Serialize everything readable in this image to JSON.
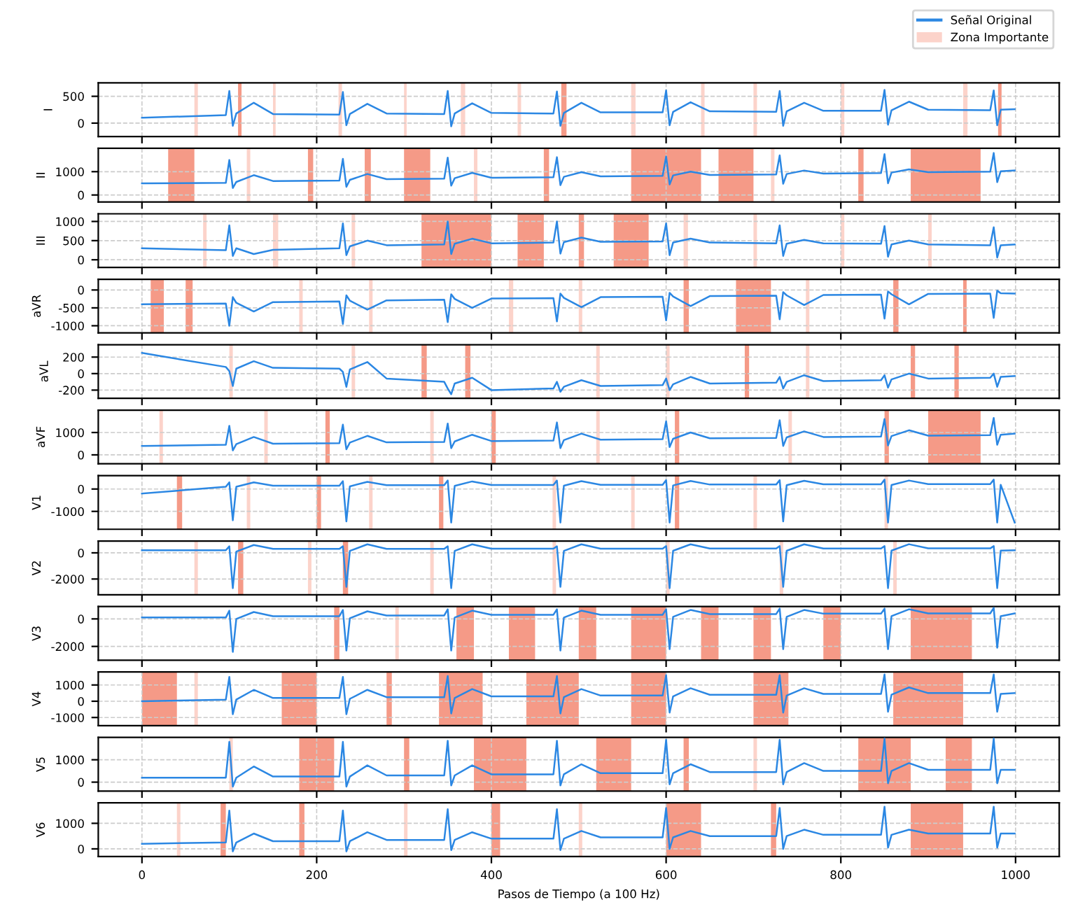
{
  "chart_data": [
    {
      "type": "line",
      "ylabel": "I",
      "legend": "top right",
      "grid": true,
      "tick_labels": "y",
      "xlim": [
        -50,
        1050
      ],
      "xticks": [
        0,
        200,
        400,
        600,
        800,
        1000
      ],
      "ylim": [
        -250,
        750
      ],
      "yticks": [
        0,
        500
      ],
      "x": [
        0,
        96,
        100,
        104,
        108,
        128,
        150,
        226,
        230,
        234,
        238,
        258,
        280,
        346,
        350,
        354,
        358,
        378,
        400,
        471,
        475,
        479,
        483,
        503,
        525,
        596,
        600,
        604,
        608,
        628,
        650,
        726,
        730,
        734,
        738,
        758,
        780,
        846,
        850,
        854,
        858,
        878,
        900,
        971,
        975,
        979,
        983,
        999
      ],
      "series": [
        {
          "name": "Señal Original",
          "color": "#2b87e3",
          "values": [
            100,
            150,
            600,
            -50,
            180,
            380,
            170,
            160,
            580,
            -40,
            170,
            360,
            180,
            170,
            600,
            -60,
            180,
            370,
            190,
            180,
            590,
            -50,
            190,
            380,
            200,
            200,
            610,
            -40,
            210,
            390,
            220,
            210,
            600,
            -50,
            220,
            380,
            230,
            230,
            620,
            -30,
            240,
            400,
            250,
            240,
            610,
            -40,
            250,
            260
          ]
        }
      ],
      "bands": [
        {
          "axis": "x",
          "from": 60,
          "to": 64,
          "color": "#fcd3ca",
          "label": "Zona Importante"
        },
        {
          "axis": "x",
          "from": 110,
          "to": 114,
          "color": "#f59a87"
        },
        {
          "axis": "x",
          "from": 150,
          "to": 153,
          "color": "#fcd3ca"
        },
        {
          "axis": "x",
          "from": 225,
          "to": 229,
          "color": "#fcd3ca"
        },
        {
          "axis": "x",
          "from": 300,
          "to": 303,
          "color": "#fcd3ca"
        },
        {
          "axis": "x",
          "from": 365,
          "to": 370,
          "color": "#fcd3ca"
        },
        {
          "axis": "x",
          "from": 430,
          "to": 434,
          "color": "#fcd3ca"
        },
        {
          "axis": "x",
          "from": 480,
          "to": 486,
          "color": "#f59a87"
        },
        {
          "axis": "x",
          "from": 560,
          "to": 565,
          "color": "#fcd3ca"
        },
        {
          "axis": "x",
          "from": 640,
          "to": 644,
          "color": "#fcd3ca"
        },
        {
          "axis": "x",
          "from": 700,
          "to": 704,
          "color": "#fcd3ca"
        },
        {
          "axis": "x",
          "from": 800,
          "to": 804,
          "color": "#fcd3ca"
        },
        {
          "axis": "x",
          "from": 940,
          "to": 945,
          "color": "#fcd3ca"
        },
        {
          "axis": "x",
          "from": 980,
          "to": 984,
          "color": "#f59a87"
        }
      ]
    },
    {
      "type": "line",
      "ylabel": "II",
      "grid": true,
      "tick_labels": "y",
      "xlim": [
        -50,
        1050
      ],
      "xticks": [
        0,
        200,
        400,
        600,
        800,
        1000
      ],
      "ylim": [
        -300,
        2000
      ],
      "yticks": [
        0,
        1000
      ],
      "x": [
        0,
        96,
        100,
        104,
        108,
        128,
        150,
        226,
        230,
        234,
        238,
        258,
        280,
        346,
        350,
        354,
        358,
        378,
        400,
        471,
        475,
        479,
        483,
        503,
        525,
        596,
        600,
        604,
        608,
        628,
        650,
        726,
        730,
        734,
        738,
        758,
        780,
        846,
        850,
        854,
        858,
        878,
        900,
        971,
        975,
        979,
        983,
        999
      ],
      "series": [
        {
          "color": "#2b87e3",
          "values": [
            500,
            520,
            1500,
            300,
            560,
            850,
            600,
            620,
            1550,
            350,
            650,
            900,
            680,
            700,
            1600,
            400,
            720,
            950,
            740,
            760,
            1620,
            420,
            780,
            980,
            800,
            820,
            1650,
            450,
            840,
            1000,
            860,
            880,
            1700,
            480,
            900,
            1050,
            920,
            940,
            1750,
            500,
            960,
            1100,
            980,
            1000,
            1800,
            550,
            1020,
            1050
          ]
        }
      ],
      "bands": [
        {
          "axis": "x",
          "from": 30,
          "to": 60,
          "color": "#f59a87"
        },
        {
          "axis": "x",
          "from": 120,
          "to": 124,
          "color": "#fcd3ca"
        },
        {
          "axis": "x",
          "from": 190,
          "to": 196,
          "color": "#f59a87"
        },
        {
          "axis": "x",
          "from": 255,
          "to": 262,
          "color": "#f59a87"
        },
        {
          "axis": "x",
          "from": 300,
          "to": 330,
          "color": "#f59a87"
        },
        {
          "axis": "x",
          "from": 380,
          "to": 384,
          "color": "#fcd3ca"
        },
        {
          "axis": "x",
          "from": 460,
          "to": 466,
          "color": "#f59a87"
        },
        {
          "axis": "x",
          "from": 560,
          "to": 640,
          "color": "#f59a87"
        },
        {
          "axis": "x",
          "from": 660,
          "to": 700,
          "color": "#f59a87"
        },
        {
          "axis": "x",
          "from": 720,
          "to": 724,
          "color": "#fcd3ca"
        },
        {
          "axis": "x",
          "from": 820,
          "to": 826,
          "color": "#f59a87"
        },
        {
          "axis": "x",
          "from": 880,
          "to": 960,
          "color": "#f59a87"
        }
      ]
    },
    {
      "type": "line",
      "ylabel": "III",
      "grid": true,
      "tick_labels": "y",
      "xlim": [
        -50,
        1050
      ],
      "xticks": [
        0,
        200,
        400,
        600,
        800,
        1000
      ],
      "ylim": [
        -200,
        1200
      ],
      "yticks": [
        0,
        500,
        1000
      ],
      "x": [
        0,
        96,
        100,
        104,
        108,
        128,
        150,
        226,
        230,
        234,
        238,
        258,
        280,
        346,
        350,
        354,
        358,
        378,
        400,
        471,
        475,
        479,
        483,
        503,
        525,
        596,
        600,
        604,
        608,
        628,
        650,
        726,
        730,
        734,
        738,
        758,
        780,
        846,
        850,
        854,
        858,
        878,
        900,
        971,
        975,
        979,
        983,
        999
      ],
      "series": [
        {
          "color": "#2b87e3",
          "values": [
            300,
            250,
            900,
            100,
            300,
            150,
            260,
            300,
            950,
            120,
            350,
            500,
            380,
            400,
            1000,
            150,
            420,
            550,
            430,
            450,
            1000,
            160,
            460,
            580,
            470,
            480,
            950,
            120,
            450,
            550,
            450,
            430,
            900,
            100,
            420,
            520,
            430,
            420,
            880,
            80,
            400,
            500,
            400,
            380,
            850,
            60,
            380,
            400
          ]
        }
      ],
      "bands": [
        {
          "axis": "x",
          "from": 70,
          "to": 74,
          "color": "#fcd3ca"
        },
        {
          "axis": "x",
          "from": 150,
          "to": 156,
          "color": "#fcd3ca"
        },
        {
          "axis": "x",
          "from": 240,
          "to": 244,
          "color": "#fcd3ca"
        },
        {
          "axis": "x",
          "from": 320,
          "to": 400,
          "color": "#f59a87"
        },
        {
          "axis": "x",
          "from": 430,
          "to": 460,
          "color": "#f59a87"
        },
        {
          "axis": "x",
          "from": 500,
          "to": 506,
          "color": "#f59a87"
        },
        {
          "axis": "x",
          "from": 540,
          "to": 580,
          "color": "#f59a87"
        },
        {
          "axis": "x",
          "from": 620,
          "to": 625,
          "color": "#fcd3ca"
        },
        {
          "axis": "x",
          "from": 700,
          "to": 704,
          "color": "#fcd3ca"
        },
        {
          "axis": "x",
          "from": 800,
          "to": 804,
          "color": "#fcd3ca"
        },
        {
          "axis": "x",
          "from": 900,
          "to": 904,
          "color": "#fcd3ca"
        }
      ]
    },
    {
      "type": "line",
      "ylabel": "aVR",
      "grid": true,
      "tick_labels": "y",
      "xlim": [
        -50,
        1050
      ],
      "xticks": [
        0,
        200,
        400,
        600,
        800,
        1000
      ],
      "ylim": [
        -1200,
        300
      ],
      "yticks": [
        -1000,
        -500,
        0
      ],
      "x": [
        0,
        96,
        100,
        104,
        108,
        128,
        150,
        226,
        230,
        234,
        238,
        258,
        280,
        346,
        350,
        354,
        358,
        378,
        400,
        471,
        475,
        479,
        483,
        503,
        525,
        596,
        600,
        604,
        608,
        628,
        650,
        726,
        730,
        734,
        738,
        758,
        780,
        846,
        850,
        854,
        858,
        878,
        900,
        971,
        975,
        979,
        983,
        999
      ],
      "series": [
        {
          "color": "#2b87e3",
          "values": [
            -400,
            -380,
            -1000,
            -200,
            -360,
            -600,
            -340,
            -320,
            -950,
            -150,
            -300,
            -550,
            -290,
            -270,
            -900,
            -120,
            -250,
            -500,
            -240,
            -230,
            -880,
            -100,
            -220,
            -480,
            -200,
            -190,
            -850,
            -80,
            -180,
            -450,
            -170,
            -160,
            -820,
            -60,
            -150,
            -420,
            -140,
            -130,
            -800,
            -40,
            -120,
            -400,
            -110,
            -100,
            -780,
            -20,
            -90,
            -100
          ]
        }
      ],
      "bands": [
        {
          "axis": "x",
          "from": 10,
          "to": 25,
          "color": "#f59a87"
        },
        {
          "axis": "x",
          "from": 50,
          "to": 58,
          "color": "#f59a87"
        },
        {
          "axis": "x",
          "from": 180,
          "to": 184,
          "color": "#fcd3ca"
        },
        {
          "axis": "x",
          "from": 260,
          "to": 264,
          "color": "#fcd3ca"
        },
        {
          "axis": "x",
          "from": 420,
          "to": 425,
          "color": "#fcd3ca"
        },
        {
          "axis": "x",
          "from": 500,
          "to": 504,
          "color": "#fcd3ca"
        },
        {
          "axis": "x",
          "from": 620,
          "to": 626,
          "color": "#f59a87"
        },
        {
          "axis": "x",
          "from": 680,
          "to": 720,
          "color": "#f59a87"
        },
        {
          "axis": "x",
          "from": 760,
          "to": 764,
          "color": "#fcd3ca"
        },
        {
          "axis": "x",
          "from": 860,
          "to": 866,
          "color": "#f59a87"
        },
        {
          "axis": "x",
          "from": 940,
          "to": 944,
          "color": "#f59a87"
        }
      ]
    },
    {
      "type": "line",
      "ylabel": "aVL",
      "grid": true,
      "tick_labels": "y",
      "xlim": [
        -50,
        1050
      ],
      "xticks": [
        0,
        200,
        400,
        600,
        800,
        1000
      ],
      "ylim": [
        -300,
        350
      ],
      "yticks": [
        -200,
        0,
        200
      ],
      "x": [
        0,
        96,
        100,
        104,
        108,
        128,
        150,
        226,
        230,
        234,
        238,
        258,
        280,
        346,
        350,
        354,
        358,
        378,
        400,
        471,
        475,
        479,
        483,
        503,
        525,
        596,
        600,
        604,
        608,
        628,
        650,
        726,
        730,
        734,
        738,
        758,
        780,
        846,
        850,
        854,
        858,
        878,
        900,
        971,
        975,
        979,
        983,
        999
      ],
      "series": [
        {
          "color": "#2b87e3",
          "values": [
            250,
            80,
            30,
            -150,
            60,
            150,
            70,
            60,
            20,
            -160,
            50,
            140,
            -60,
            -100,
            -180,
            -250,
            -120,
            -50,
            -200,
            -180,
            -100,
            -220,
            -160,
            -80,
            -150,
            -140,
            -60,
            -200,
            -130,
            -40,
            -120,
            -110,
            -40,
            -180,
            -100,
            -20,
            -90,
            -80,
            -20,
            -170,
            -70,
            0,
            -60,
            -50,
            0,
            -160,
            -40,
            -30
          ]
        }
      ],
      "bands": [
        {
          "axis": "x",
          "from": 100,
          "to": 104,
          "color": "#fcd3ca"
        },
        {
          "axis": "x",
          "from": 240,
          "to": 244,
          "color": "#fcd3ca"
        },
        {
          "axis": "x",
          "from": 320,
          "to": 326,
          "color": "#f59a87"
        },
        {
          "axis": "x",
          "from": 370,
          "to": 376,
          "color": "#f59a87"
        },
        {
          "axis": "x",
          "from": 520,
          "to": 524,
          "color": "#fcd3ca"
        },
        {
          "axis": "x",
          "from": 600,
          "to": 604,
          "color": "#fcd3ca"
        },
        {
          "axis": "x",
          "from": 690,
          "to": 695,
          "color": "#f59a87"
        },
        {
          "axis": "x",
          "from": 760,
          "to": 764,
          "color": "#fcd3ca"
        },
        {
          "axis": "x",
          "from": 880,
          "to": 885,
          "color": "#f59a87"
        },
        {
          "axis": "x",
          "from": 930,
          "to": 935,
          "color": "#f59a87"
        }
      ]
    },
    {
      "type": "line",
      "ylabel": "aVF",
      "grid": true,
      "tick_labels": "y",
      "xlim": [
        -50,
        1050
      ],
      "xticks": [
        0,
        200,
        400,
        600,
        800,
        1000
      ],
      "ylim": [
        -400,
        2000
      ],
      "yticks": [
        0,
        1000
      ],
      "x": [
        0,
        96,
        100,
        104,
        108,
        128,
        150,
        226,
        230,
        234,
        238,
        258,
        280,
        346,
        350,
        354,
        358,
        378,
        400,
        471,
        475,
        479,
        483,
        503,
        525,
        596,
        600,
        604,
        608,
        628,
        650,
        726,
        730,
        734,
        738,
        758,
        780,
        846,
        850,
        854,
        858,
        878,
        900,
        971,
        975,
        979,
        983,
        999
      ],
      "series": [
        {
          "color": "#2b87e3",
          "values": [
            400,
            450,
            1300,
            200,
            480,
            800,
            500,
            520,
            1350,
            250,
            550,
            850,
            560,
            580,
            1400,
            300,
            600,
            900,
            620,
            640,
            1450,
            300,
            660,
            950,
            680,
            700,
            1500,
            350,
            720,
            1000,
            740,
            760,
            1550,
            400,
            780,
            1050,
            800,
            820,
            1600,
            420,
            840,
            1100,
            860,
            880,
            1650,
            450,
            900,
            950
          ]
        }
      ],
      "bands": [
        {
          "axis": "x",
          "from": 20,
          "to": 24,
          "color": "#fcd3ca"
        },
        {
          "axis": "x",
          "from": 140,
          "to": 144,
          "color": "#fcd3ca"
        },
        {
          "axis": "x",
          "from": 210,
          "to": 215,
          "color": "#f59a87"
        },
        {
          "axis": "x",
          "from": 330,
          "to": 334,
          "color": "#fcd3ca"
        },
        {
          "axis": "x",
          "from": 400,
          "to": 405,
          "color": "#f59a87"
        },
        {
          "axis": "x",
          "from": 520,
          "to": 524,
          "color": "#fcd3ca"
        },
        {
          "axis": "x",
          "from": 610,
          "to": 615,
          "color": "#f59a87"
        },
        {
          "axis": "x",
          "from": 740,
          "to": 744,
          "color": "#fcd3ca"
        },
        {
          "axis": "x",
          "from": 850,
          "to": 855,
          "color": "#f59a87"
        },
        {
          "axis": "x",
          "from": 900,
          "to": 960,
          "color": "#f59a87"
        }
      ]
    },
    {
      "type": "line",
      "ylabel": "V1",
      "grid": true,
      "tick_labels": "y",
      "xlim": [
        -50,
        1050
      ],
      "xticks": [
        0,
        200,
        400,
        600,
        800,
        1000
      ],
      "ylim": [
        -1800,
        600
      ],
      "yticks": [
        -1000,
        0
      ],
      "x": [
        0,
        96,
        100,
        104,
        108,
        128,
        150,
        226,
        230,
        234,
        238,
        258,
        280,
        346,
        350,
        354,
        358,
        378,
        400,
        471,
        475,
        479,
        483,
        503,
        525,
        596,
        600,
        604,
        608,
        628,
        650,
        726,
        730,
        734,
        738,
        758,
        780,
        846,
        850,
        854,
        858,
        878,
        900,
        971,
        975,
        979,
        983,
        999
      ],
      "series": [
        {
          "color": "#2b87e3",
          "values": [
            -200,
            100,
            300,
            -1400,
            100,
            300,
            150,
            150,
            350,
            -1450,
            120,
            320,
            170,
            170,
            380,
            -1500,
            140,
            340,
            180,
            180,
            380,
            -1500,
            150,
            350,
            190,
            190,
            400,
            -1500,
            160,
            360,
            200,
            200,
            400,
            -1450,
            170,
            370,
            210,
            210,
            420,
            -1500,
            180,
            380,
            220,
            220,
            420,
            -1500,
            190,
            -1500
          ]
        }
      ],
      "bands": [
        {
          "axis": "x",
          "from": 40,
          "to": 46,
          "color": "#f59a87"
        },
        {
          "axis": "x",
          "from": 120,
          "to": 124,
          "color": "#fcd3ca"
        },
        {
          "axis": "x",
          "from": 200,
          "to": 205,
          "color": "#f59a87"
        },
        {
          "axis": "x",
          "from": 260,
          "to": 264,
          "color": "#fcd3ca"
        },
        {
          "axis": "x",
          "from": 340,
          "to": 345,
          "color": "#f59a87"
        },
        {
          "axis": "x",
          "from": 470,
          "to": 474,
          "color": "#fcd3ca"
        },
        {
          "axis": "x",
          "from": 560,
          "to": 564,
          "color": "#fcd3ca"
        },
        {
          "axis": "x",
          "from": 610,
          "to": 615,
          "color": "#f59a87"
        },
        {
          "axis": "x",
          "from": 700,
          "to": 704,
          "color": "#fcd3ca"
        },
        {
          "axis": "x",
          "from": 850,
          "to": 854,
          "color": "#fcd3ca"
        }
      ]
    },
    {
      "type": "line",
      "ylabel": "V2",
      "grid": true,
      "tick_labels": "y",
      "xlim": [
        -50,
        1050
      ],
      "xticks": [
        0,
        200,
        400,
        600,
        800,
        1000
      ],
      "ylim": [
        -3200,
        900
      ],
      "yticks": [
        -2000,
        0
      ],
      "x": [
        0,
        96,
        100,
        104,
        108,
        128,
        150,
        226,
        230,
        234,
        238,
        258,
        280,
        346,
        350,
        354,
        358,
        378,
        400,
        471,
        475,
        479,
        483,
        503,
        525,
        596,
        600,
        604,
        608,
        628,
        650,
        726,
        730,
        734,
        738,
        758,
        780,
        846,
        850,
        854,
        858,
        878,
        900,
        971,
        975,
        979,
        983,
        999
      ],
      "series": [
        {
          "color": "#2b87e3",
          "values": [
            200,
            200,
            500,
            -2700,
            100,
            600,
            300,
            300,
            500,
            -2600,
            150,
            650,
            300,
            300,
            500,
            -2700,
            150,
            650,
            320,
            320,
            500,
            -2600,
            150,
            650,
            320,
            320,
            520,
            -2700,
            160,
            650,
            330,
            330,
            520,
            -2600,
            160,
            650,
            330,
            330,
            520,
            -2700,
            170,
            660,
            340,
            340,
            520,
            -2700,
            170,
            200
          ]
        }
      ],
      "bands": [
        {
          "axis": "x",
          "from": 60,
          "to": 64,
          "color": "#fcd3ca"
        },
        {
          "axis": "x",
          "from": 110,
          "to": 116,
          "color": "#f59a87"
        },
        {
          "axis": "x",
          "from": 190,
          "to": 194,
          "color": "#fcd3ca"
        },
        {
          "axis": "x",
          "from": 230,
          "to": 236,
          "color": "#f59a87"
        },
        {
          "axis": "x",
          "from": 330,
          "to": 334,
          "color": "#fcd3ca"
        },
        {
          "axis": "x",
          "from": 470,
          "to": 474,
          "color": "#fcd3ca"
        },
        {
          "axis": "x",
          "from": 600,
          "to": 604,
          "color": "#fcd3ca"
        },
        {
          "axis": "x",
          "from": 730,
          "to": 734,
          "color": "#fcd3ca"
        },
        {
          "axis": "x",
          "from": 860,
          "to": 864,
          "color": "#fcd3ca"
        }
      ]
    },
    {
      "type": "line",
      "ylabel": "V3",
      "grid": true,
      "tick_labels": "y",
      "xlim": [
        -50,
        1050
      ],
      "xticks": [
        0,
        200,
        400,
        600,
        800,
        1000
      ],
      "ylim": [
        -3000,
        900
      ],
      "yticks": [
        -2000,
        0
      ],
      "x": [
        0,
        96,
        100,
        104,
        108,
        128,
        150,
        226,
        230,
        234,
        238,
        258,
        280,
        346,
        350,
        354,
        358,
        378,
        400,
        471,
        475,
        479,
        483,
        503,
        525,
        596,
        600,
        604,
        608,
        628,
        650,
        726,
        730,
        734,
        738,
        758,
        780,
        846,
        850,
        854,
        858,
        878,
        900,
        971,
        975,
        979,
        983,
        999
      ],
      "series": [
        {
          "color": "#2b87e3",
          "values": [
            100,
            100,
            600,
            -2400,
            0,
            500,
            200,
            200,
            650,
            -2300,
            50,
            550,
            250,
            250,
            700,
            -2300,
            100,
            600,
            300,
            300,
            700,
            -2300,
            100,
            600,
            300,
            300,
            700,
            -2200,
            150,
            650,
            350,
            350,
            750,
            -2200,
            150,
            650,
            380,
            380,
            750,
            -2200,
            200,
            700,
            400,
            400,
            800,
            -2100,
            200,
            400
          ]
        }
      ],
      "bands": [
        {
          "axis": "x",
          "from": 220,
          "to": 226,
          "color": "#f59a87"
        },
        {
          "axis": "x",
          "from": 290,
          "to": 294,
          "color": "#fcd3ca"
        },
        {
          "axis": "x",
          "from": 360,
          "to": 380,
          "color": "#f59a87"
        },
        {
          "axis": "x",
          "from": 420,
          "to": 450,
          "color": "#f59a87"
        },
        {
          "axis": "x",
          "from": 500,
          "to": 520,
          "color": "#f59a87"
        },
        {
          "axis": "x",
          "from": 560,
          "to": 600,
          "color": "#f59a87"
        },
        {
          "axis": "x",
          "from": 640,
          "to": 660,
          "color": "#f59a87"
        },
        {
          "axis": "x",
          "from": 700,
          "to": 720,
          "color": "#f59a87"
        },
        {
          "axis": "x",
          "from": 780,
          "to": 800,
          "color": "#f59a87"
        },
        {
          "axis": "x",
          "from": 880,
          "to": 950,
          "color": "#f59a87"
        }
      ]
    },
    {
      "type": "line",
      "ylabel": "V4",
      "grid": true,
      "tick_labels": "y",
      "xlim": [
        -50,
        1050
      ],
      "xticks": [
        0,
        200,
        400,
        600,
        800,
        1000
      ],
      "ylim": [
        -1500,
        1800
      ],
      "yticks": [
        -1000,
        0,
        1000
      ],
      "x": [
        0,
        96,
        100,
        104,
        108,
        128,
        150,
        226,
        230,
        234,
        238,
        258,
        280,
        346,
        350,
        354,
        358,
        378,
        400,
        471,
        475,
        479,
        483,
        503,
        525,
        596,
        600,
        604,
        608,
        628,
        650,
        726,
        730,
        734,
        738,
        758,
        780,
        846,
        850,
        854,
        858,
        878,
        900,
        971,
        975,
        979,
        983,
        999
      ],
      "series": [
        {
          "color": "#2b87e3",
          "values": [
            0,
            100,
            1500,
            -800,
            100,
            700,
            200,
            200,
            1500,
            -800,
            150,
            700,
            250,
            250,
            1550,
            -750,
            200,
            750,
            300,
            300,
            1550,
            -750,
            250,
            750,
            350,
            350,
            1600,
            -700,
            300,
            800,
            400,
            400,
            1600,
            -700,
            350,
            800,
            450,
            450,
            1650,
            -650,
            400,
            850,
            500,
            500,
            1650,
            -650,
            450,
            500
          ]
        }
      ],
      "bands": [
        {
          "axis": "x",
          "from": 0,
          "to": 40,
          "color": "#f59a87"
        },
        {
          "axis": "x",
          "from": 60,
          "to": 64,
          "color": "#fcd3ca"
        },
        {
          "axis": "x",
          "from": 160,
          "to": 200,
          "color": "#f59a87"
        },
        {
          "axis": "x",
          "from": 280,
          "to": 286,
          "color": "#f59a87"
        },
        {
          "axis": "x",
          "from": 340,
          "to": 390,
          "color": "#f59a87"
        },
        {
          "axis": "x",
          "from": 440,
          "to": 500,
          "color": "#f59a87"
        },
        {
          "axis": "x",
          "from": 560,
          "to": 600,
          "color": "#f59a87"
        },
        {
          "axis": "x",
          "from": 700,
          "to": 740,
          "color": "#f59a87"
        },
        {
          "axis": "x",
          "from": 860,
          "to": 940,
          "color": "#f59a87"
        }
      ]
    },
    {
      "type": "line",
      "ylabel": "V5",
      "grid": true,
      "tick_labels": "y",
      "xlim": [
        -50,
        1050
      ],
      "xticks": [
        0,
        200,
        400,
        600,
        800,
        1000
      ],
      "ylim": [
        -400,
        2000
      ],
      "yticks": [
        0,
        1000
      ],
      "x": [
        0,
        96,
        100,
        104,
        108,
        128,
        150,
        226,
        230,
        234,
        238,
        258,
        280,
        346,
        350,
        354,
        358,
        378,
        400,
        471,
        475,
        479,
        483,
        503,
        525,
        596,
        600,
        604,
        608,
        628,
        650,
        726,
        730,
        734,
        738,
        758,
        780,
        846,
        850,
        854,
        858,
        878,
        900,
        971,
        975,
        979,
        983,
        999
      ],
      "series": [
        {
          "color": "#2b87e3",
          "values": [
            200,
            200,
            1800,
            -200,
            200,
            700,
            250,
            250,
            1800,
            -200,
            250,
            750,
            300,
            300,
            1850,
            -150,
            300,
            750,
            350,
            350,
            1850,
            -150,
            350,
            800,
            400,
            400,
            1900,
            -100,
            400,
            800,
            450,
            450,
            1900,
            -100,
            450,
            850,
            500,
            500,
            1950,
            -50,
            500,
            850,
            550,
            550,
            1950,
            -50,
            550,
            550
          ]
        }
      ],
      "bands": [
        {
          "axis": "x",
          "from": 100,
          "to": 104,
          "color": "#fcd3ca"
        },
        {
          "axis": "x",
          "from": 180,
          "to": 220,
          "color": "#f59a87"
        },
        {
          "axis": "x",
          "from": 300,
          "to": 306,
          "color": "#f59a87"
        },
        {
          "axis": "x",
          "from": 380,
          "to": 440,
          "color": "#f59a87"
        },
        {
          "axis": "x",
          "from": 520,
          "to": 560,
          "color": "#f59a87"
        },
        {
          "axis": "x",
          "from": 620,
          "to": 626,
          "color": "#f59a87"
        },
        {
          "axis": "x",
          "from": 700,
          "to": 704,
          "color": "#fcd3ca"
        },
        {
          "axis": "x",
          "from": 820,
          "to": 880,
          "color": "#f59a87"
        },
        {
          "axis": "x",
          "from": 920,
          "to": 950,
          "color": "#f59a87"
        }
      ]
    },
    {
      "type": "line",
      "ylabel": "V6",
      "grid": true,
      "xlabel": "Pasos de Tiempo (a 100 Hz)",
      "xlim": [
        -50,
        1050
      ],
      "xticks": [
        0,
        200,
        400,
        600,
        800,
        1000
      ],
      "ylim": [
        -300,
        1800
      ],
      "yticks": [
        0,
        1000
      ],
      "x": [
        0,
        96,
        100,
        104,
        108,
        128,
        150,
        226,
        230,
        234,
        238,
        258,
        280,
        346,
        350,
        354,
        358,
        378,
        400,
        471,
        475,
        479,
        483,
        503,
        525,
        596,
        600,
        604,
        608,
        628,
        650,
        726,
        730,
        734,
        738,
        758,
        780,
        846,
        850,
        854,
        858,
        878,
        900,
        971,
        975,
        979,
        983,
        999
      ],
      "series": [
        {
          "color": "#2b87e3",
          "values": [
            200,
            250,
            1500,
            -100,
            250,
            600,
            300,
            300,
            1500,
            -100,
            300,
            650,
            350,
            350,
            1550,
            -50,
            350,
            650,
            400,
            400,
            1550,
            -50,
            400,
            700,
            450,
            450,
            1600,
            0,
            450,
            700,
            500,
            500,
            1600,
            0,
            500,
            750,
            550,
            550,
            1650,
            50,
            550,
            750,
            600,
            600,
            1650,
            50,
            600,
            600
          ]
        }
      ],
      "bands": [
        {
          "axis": "x",
          "from": 40,
          "to": 44,
          "color": "#fcd3ca"
        },
        {
          "axis": "x",
          "from": 90,
          "to": 96,
          "color": "#f59a87"
        },
        {
          "axis": "x",
          "from": 180,
          "to": 186,
          "color": "#f59a87"
        },
        {
          "axis": "x",
          "from": 300,
          "to": 304,
          "color": "#fcd3ca"
        },
        {
          "axis": "x",
          "from": 400,
          "to": 410,
          "color": "#f59a87"
        },
        {
          "axis": "x",
          "from": 500,
          "to": 504,
          "color": "#fcd3ca"
        },
        {
          "axis": "x",
          "from": 600,
          "to": 640,
          "color": "#f59a87"
        },
        {
          "axis": "x",
          "from": 720,
          "to": 726,
          "color": "#f59a87"
        },
        {
          "axis": "x",
          "from": 880,
          "to": 940,
          "color": "#f59a87"
        }
      ]
    }
  ]
}
